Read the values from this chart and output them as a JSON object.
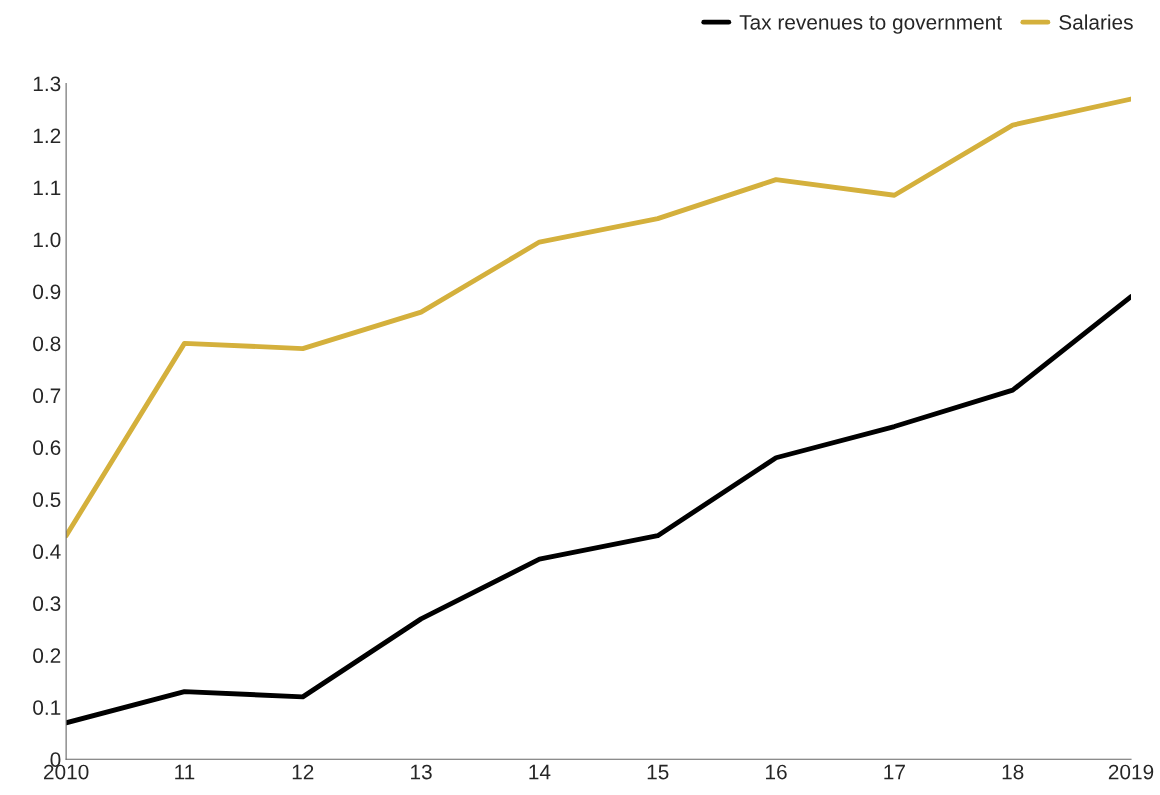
{
  "chart_data": {
    "type": "line",
    "categories": [
      "2010",
      "11",
      "12",
      "13",
      "14",
      "15",
      "16",
      "17",
      "18",
      "2019"
    ],
    "series": [
      {
        "name": "Tax revenues to government",
        "color": "#000000",
        "values": [
          0.07,
          0.13,
          0.12,
          0.27,
          0.385,
          0.43,
          0.58,
          0.64,
          0.71,
          0.89
        ]
      },
      {
        "name": "Salaries",
        "color": "#d4b03c",
        "values": [
          0.43,
          0.8,
          0.79,
          0.86,
          0.995,
          1.04,
          1.115,
          1.085,
          1.22,
          1.27
        ]
      }
    ],
    "ylim": [
      0,
      1.3
    ],
    "yticks": [
      0,
      0.1,
      0.2,
      0.3,
      0.4,
      0.5,
      0.6,
      0.7,
      0.8,
      0.9,
      {
        "value": 1,
        "label": "1.0"
      },
      1.1,
      1.2,
      1.3
    ],
    "grid": false,
    "legend": "top right",
    "marker": "none",
    "line_style": "solid"
  }
}
